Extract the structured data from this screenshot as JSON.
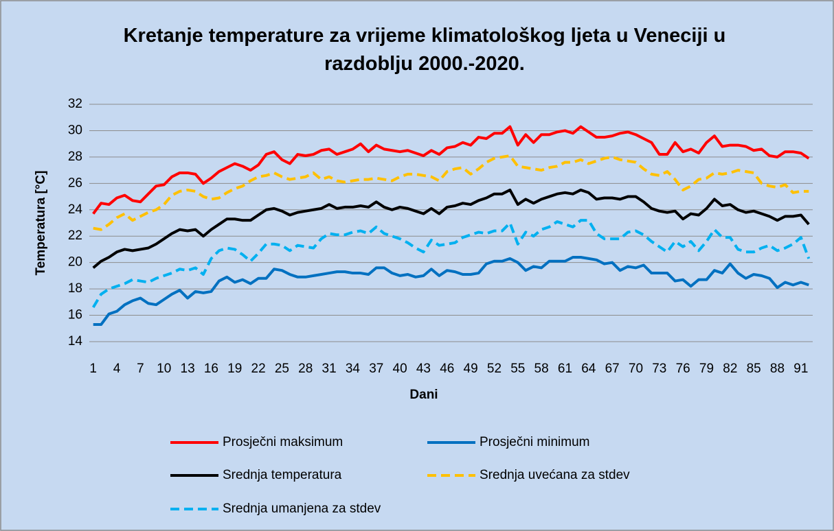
{
  "chart_data": {
    "type": "line",
    "title": "Kretanje temperature za vrijeme klimatološkog ljeta u Veneciji u razdoblju 2000.-2020.",
    "xlabel": "Dani",
    "ylabel": "Temperatura [°C]",
    "categories": [
      1,
      null,
      null,
      4,
      null,
      null,
      7,
      null,
      null,
      10,
      null,
      null,
      13,
      null,
      null,
      16,
      null,
      null,
      19,
      null,
      null,
      22,
      null,
      null,
      25,
      null,
      null,
      28,
      null,
      null,
      31,
      null,
      null,
      34,
      null,
      null,
      37,
      null,
      null,
      40,
      null,
      null,
      43,
      null,
      null,
      46,
      null,
      null,
      49,
      null,
      null,
      52,
      null,
      null,
      55,
      null,
      null,
      58,
      null,
      null,
      61,
      null,
      null,
      64,
      null,
      null,
      67,
      null,
      null,
      70,
      null,
      null,
      73,
      null,
      null,
      76,
      null,
      null,
      79,
      null,
      null,
      82,
      null,
      null,
      85,
      null,
      null,
      88,
      null,
      null,
      91,
      null
    ],
    "ylim": [
      14,
      32
    ],
    "yticks": [
      14,
      16,
      18,
      20,
      22,
      24,
      26,
      28,
      30,
      32
    ],
    "grid": true,
    "series": [
      {
        "name": "Prosječni maksimum",
        "color": "#ff0000",
        "dashed": false,
        "values": [
          23.7,
          24.5,
          24.4,
          24.9,
          25.1,
          24.7,
          24.6,
          25.2,
          25.8,
          25.9,
          26.5,
          26.8,
          26.8,
          26.7,
          26.0,
          26.4,
          26.9,
          27.2,
          27.5,
          27.3,
          27.0,
          27.4,
          28.2,
          28.4,
          27.8,
          27.5,
          28.2,
          28.1,
          28.2,
          28.5,
          28.6,
          28.2,
          28.4,
          28.6,
          29.0,
          28.4,
          28.9,
          28.6,
          28.5,
          28.4,
          28.5,
          28.3,
          28.1,
          28.5,
          28.2,
          28.7,
          28.8,
          29.1,
          28.9,
          29.5,
          29.4,
          29.8,
          29.8,
          30.3,
          28.9,
          29.7,
          29.1,
          29.7,
          29.7,
          29.9,
          30.0,
          29.8,
          30.3,
          29.9,
          29.5,
          29.5,
          29.6,
          29.8,
          29.9,
          29.7,
          29.4,
          29.1,
          28.2,
          28.2,
          29.1,
          28.4,
          28.6,
          28.3,
          29.1,
          29.6,
          28.8,
          28.9,
          28.9,
          28.8,
          28.5,
          28.6,
          28.1,
          28.0,
          28.4,
          28.4,
          28.3,
          27.9
        ]
      },
      {
        "name": "Prosječni minimum",
        "color": "#0070c0",
        "dashed": false,
        "values": [
          15.3,
          15.3,
          16.1,
          16.3,
          16.8,
          17.1,
          17.3,
          16.9,
          16.8,
          17.2,
          17.6,
          17.9,
          17.3,
          17.8,
          17.7,
          17.8,
          18.6,
          18.9,
          18.5,
          18.7,
          18.4,
          18.8,
          18.8,
          19.5,
          19.4,
          19.1,
          18.9,
          18.9,
          19.0,
          19.1,
          19.2,
          19.3,
          19.3,
          19.2,
          19.2,
          19.1,
          19.6,
          19.6,
          19.2,
          19.0,
          19.1,
          18.9,
          19.0,
          19.5,
          19.0,
          19.4,
          19.3,
          19.1,
          19.1,
          19.2,
          19.9,
          20.1,
          20.1,
          20.3,
          20.0,
          19.4,
          19.7,
          19.6,
          20.1,
          20.1,
          20.1,
          20.4,
          20.4,
          20.3,
          20.2,
          19.9,
          20.0,
          19.4,
          19.7,
          19.6,
          19.8,
          19.2,
          19.2,
          19.2,
          18.6,
          18.7,
          18.2,
          18.7,
          18.7,
          19.4,
          19.2,
          19.9,
          19.2,
          18.8,
          19.1,
          19.0,
          18.8,
          18.1,
          18.5,
          18.3,
          18.5,
          18.3
        ]
      },
      {
        "name": "Srednja temperatura",
        "color": "#000000",
        "dashed": false,
        "values": [
          19.6,
          20.1,
          20.4,
          20.8,
          21.0,
          20.9,
          21.0,
          21.1,
          21.4,
          21.8,
          22.2,
          22.5,
          22.4,
          22.5,
          22.0,
          22.5,
          22.9,
          23.3,
          23.3,
          23.2,
          23.2,
          23.6,
          24.0,
          24.1,
          23.9,
          23.6,
          23.8,
          23.9,
          24.0,
          24.1,
          24.4,
          24.1,
          24.2,
          24.2,
          24.3,
          24.2,
          24.6,
          24.2,
          24.0,
          24.2,
          24.1,
          23.9,
          23.7,
          24.1,
          23.7,
          24.2,
          24.3,
          24.5,
          24.4,
          24.7,
          24.9,
          25.2,
          25.2,
          25.5,
          24.4,
          24.8,
          24.5,
          24.8,
          25.0,
          25.2,
          25.3,
          25.2,
          25.5,
          25.3,
          24.8,
          24.9,
          24.9,
          24.8,
          25.0,
          25.0,
          24.6,
          24.1,
          23.9,
          23.8,
          23.9,
          23.3,
          23.7,
          23.6,
          24.1,
          24.8,
          24.3,
          24.4,
          24.0,
          23.8,
          23.9,
          23.7,
          23.5,
          23.2,
          23.5,
          23.5,
          23.6,
          22.9
        ]
      },
      {
        "name": "Srednja uvećana za stdev",
        "color": "#ffc000",
        "dashed": true,
        "values": [
          22.6,
          22.5,
          22.9,
          23.4,
          23.7,
          23.2,
          23.5,
          23.8,
          24.0,
          24.4,
          25.1,
          25.4,
          25.5,
          25.4,
          25.0,
          24.8,
          24.9,
          25.3,
          25.6,
          25.8,
          26.2,
          26.5,
          26.6,
          26.8,
          26.5,
          26.3,
          26.4,
          26.5,
          26.8,
          26.3,
          26.5,
          26.2,
          26.1,
          26.2,
          26.3,
          26.3,
          26.4,
          26.3,
          26.2,
          26.5,
          26.7,
          26.7,
          26.6,
          26.5,
          26.2,
          26.9,
          27.1,
          27.2,
          26.7,
          27.1,
          27.6,
          27.9,
          28.0,
          28.1,
          27.3,
          27.2,
          27.1,
          27.0,
          27.2,
          27.3,
          27.6,
          27.6,
          27.8,
          27.5,
          27.7,
          27.9,
          28.0,
          27.8,
          27.7,
          27.6,
          27.1,
          26.7,
          26.6,
          26.9,
          26.3,
          25.5,
          25.8,
          26.3,
          26.4,
          26.8,
          26.7,
          26.8,
          27.0,
          26.9,
          26.8,
          26.0,
          25.8,
          25.7,
          25.9,
          25.3,
          25.4,
          25.4
        ]
      },
      {
        "name": "Srednja umanjena za stdev",
        "color": "#00b0f0",
        "dashed": true,
        "values": [
          16.6,
          17.6,
          18.0,
          18.2,
          18.4,
          18.7,
          18.6,
          18.5,
          18.8,
          19.0,
          19.2,
          19.5,
          19.4,
          19.6,
          19.1,
          20.3,
          20.9,
          21.1,
          21.0,
          20.6,
          20.1,
          20.7,
          21.4,
          21.4,
          21.3,
          20.9,
          21.3,
          21.2,
          21.1,
          21.8,
          22.2,
          22.1,
          22.1,
          22.3,
          22.4,
          22.2,
          22.7,
          22.2,
          22.0,
          21.8,
          21.5,
          21.1,
          20.8,
          21.7,
          21.3,
          21.4,
          21.5,
          21.9,
          22.1,
          22.3,
          22.2,
          22.4,
          22.4,
          23.0,
          21.4,
          22.3,
          22.0,
          22.5,
          22.7,
          23.1,
          22.9,
          22.7,
          23.2,
          23.2,
          22.2,
          21.8,
          21.8,
          21.8,
          22.3,
          22.4,
          22.1,
          21.6,
          21.2,
          20.8,
          21.6,
          21.2,
          21.6,
          20.9,
          21.6,
          22.5,
          21.9,
          21.9,
          21.0,
          20.8,
          20.8,
          21.1,
          21.3,
          20.9,
          21.1,
          21.4,
          21.9,
          20.3
        ]
      }
    ]
  }
}
